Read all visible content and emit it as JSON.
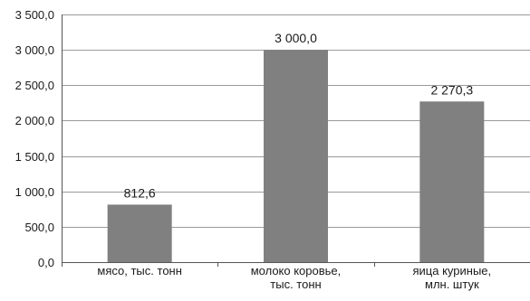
{
  "chart_data": {
    "type": "bar",
    "title": "",
    "xlabel": "",
    "ylabel": "",
    "ylim": [
      0,
      3500
    ],
    "yticks": [
      0,
      500,
      1000,
      1500,
      2000,
      2500,
      3000,
      3500
    ],
    "ytick_labels": [
      "0,0",
      "500,0",
      "1 000,0",
      "1 500,0",
      "2 000,0",
      "2 500,0",
      "3 000,0",
      "3 500,0"
    ],
    "grid": true,
    "legend": "none",
    "categories": [
      [
        "мясо, тыс. тонн"
      ],
      [
        "молоко коровье,",
        "тыс. тонн"
      ],
      [
        "яица куриные,",
        "млн. штук"
      ]
    ],
    "values": [
      812.6,
      3000.0,
      2270.3
    ],
    "value_labels": [
      "812,6",
      "3 000,0",
      "2 270,3"
    ],
    "colors": {
      "bar": "#808080",
      "grid": "#9a9a9a",
      "axis": "#555555"
    }
  }
}
